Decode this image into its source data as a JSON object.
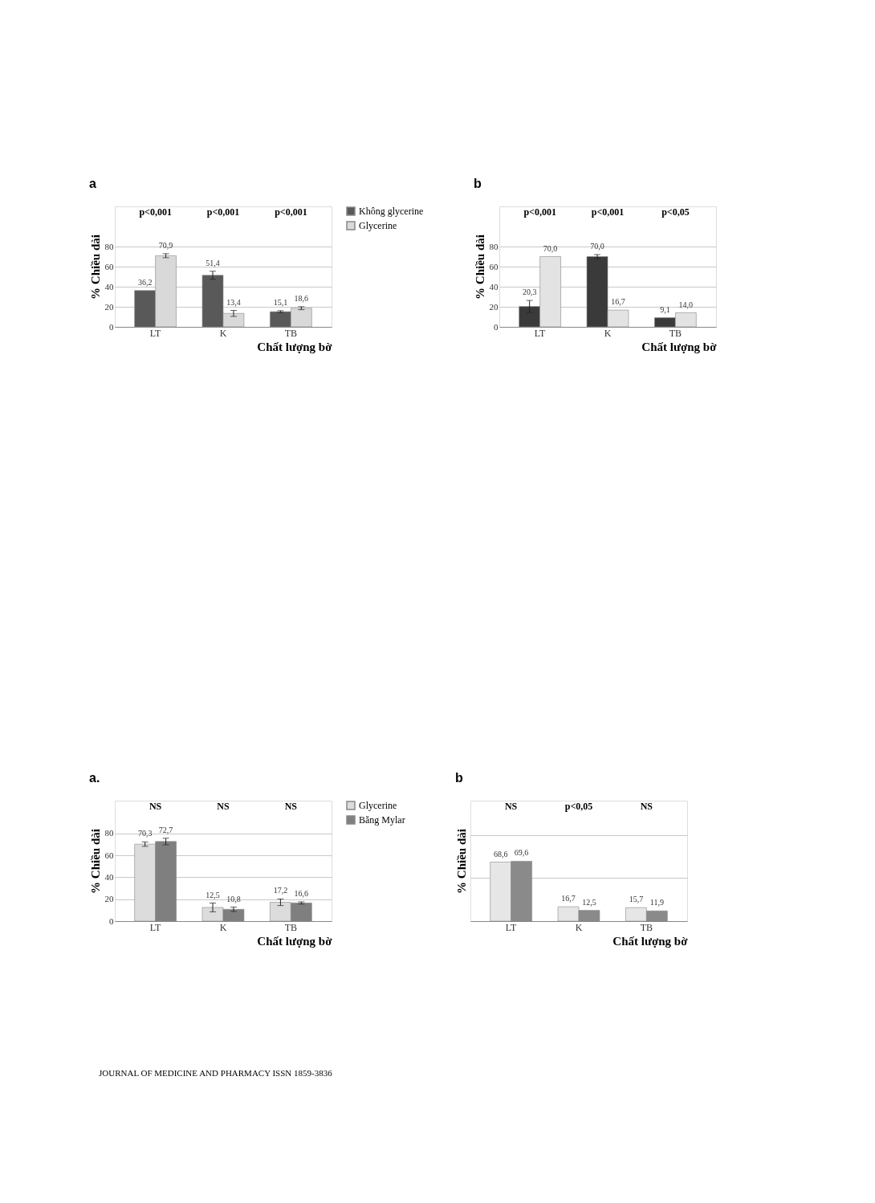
{
  "chart_data": [
    {
      "type": "bar",
      "title": "a",
      "xlabel": "Chất lượng bờ",
      "ylabel": "% Chiều dài",
      "categories": [
        "LT",
        "K",
        "TB"
      ],
      "ylim": [
        0,
        120
      ],
      "yticks": [
        0,
        20,
        40,
        60,
        80
      ],
      "grid": "y",
      "legend": "top right",
      "series": [
        {
          "name": "Không glycerine",
          "color": "#595959",
          "values": [
            36.2,
            51.4,
            15.1
          ],
          "errors": [
            null,
            4,
            1
          ],
          "value_labels": [
            "36,2",
            "51,4",
            "15,1"
          ]
        },
        {
          "name": "Glycerine",
          "color": "#d9d9d9",
          "values": [
            70.9,
            13.4,
            18.6
          ],
          "errors": [
            2,
            3,
            1.5
          ],
          "value_labels": [
            "70,9",
            "13,4",
            "18,6"
          ]
        }
      ],
      "annotations": [
        "p<0,001",
        "p<0,001",
        "p<0,001"
      ]
    },
    {
      "type": "bar",
      "title": "b",
      "xlabel": "Chất lượng bờ",
      "ylabel": "% Chiều dài",
      "categories": [
        "LT",
        "K",
        "TB"
      ],
      "ylim": [
        0,
        120
      ],
      "yticks": [
        0,
        20,
        40,
        60,
        80
      ],
      "grid": "y",
      "series": [
        {
          "color": "#3a3a3a",
          "values": [
            20.3,
            70.0,
            9.1
          ],
          "errors": [
            6,
            2,
            null
          ],
          "value_labels": [
            "20,3",
            "70,0",
            "9,1"
          ]
        },
        {
          "color": "#e3e3e3",
          "values": [
            70.0,
            16.7,
            14.0
          ],
          "value_labels": [
            "70,0",
            "16,7",
            "14,0"
          ]
        }
      ],
      "annotations": [
        "p<0,001",
        "p<0,001",
        "p<0,05"
      ]
    },
    {
      "type": "bar",
      "title": "a.",
      "xlabel": "Chất lượng bờ",
      "ylabel": "% Chiều dài",
      "categories": [
        "LT",
        "K",
        "TB"
      ],
      "ylim": [
        0,
        110
      ],
      "yticks": [
        0,
        20,
        40,
        60,
        80
      ],
      "grid": "y",
      "legend": "right",
      "series": [
        {
          "name": "Glycerine",
          "color": "#dcdcdc",
          "values": [
            70.3,
            12.5,
            17.2
          ],
          "errors": [
            2,
            4,
            3
          ],
          "value_labels": [
            "70,3",
            "12,5",
            "17,2"
          ]
        },
        {
          "name": "Băng Mylar",
          "color": "#7f7f7f",
          "values": [
            72.7,
            10.8,
            16.6
          ],
          "errors": [
            3,
            2,
            1
          ],
          "value_labels": [
            "72,7",
            "10,8",
            "16,6"
          ]
        }
      ],
      "annotations": [
        "NS",
        "NS",
        "NS",
        "JOURNAL OF MEDICINE AND PHARMACY ISSN 1859-3836"
      ]
    },
    {
      "type": "bar",
      "title": "b",
      "xlabel": "Chất lượng bờ",
      "ylabel": "% Chiều dài",
      "categories": [
        "LT",
        "K",
        "TB"
      ],
      "ylim": [
        0,
        140
      ],
      "yticks": [
        {
          "value": 0,
          "label": null
        },
        {
          "value": 50,
          "label": null
        },
        {
          "value": 100,
          "label": null
        }
      ],
      "grid": "y",
      "tick_labels": "x",
      "series": [
        {
          "color": "#e6e6e6",
          "values": [
            68.6,
            16.7,
            15.7
          ],
          "value_labels": [
            "68,6",
            "16,7",
            "15,7"
          ]
        },
        {
          "color": "#8a8a8a",
          "values": [
            69.6,
            12.5,
            11.9
          ],
          "value_labels": [
            "69,6",
            "12,5",
            "11,9"
          ]
        }
      ],
      "annotations": [
        "NS",
        "p<0,05",
        "NS"
      ]
    }
  ]
}
